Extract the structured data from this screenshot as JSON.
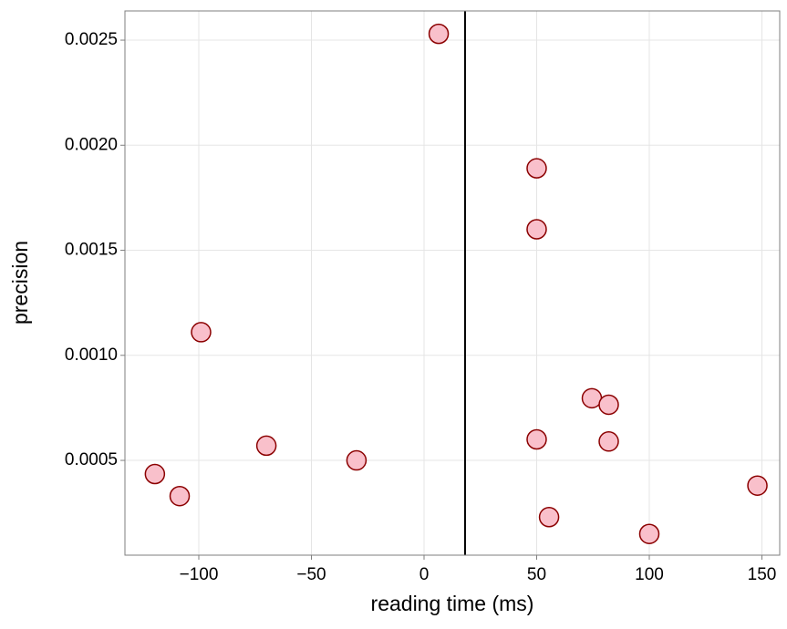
{
  "chart_data": {
    "type": "scatter",
    "x_label": "reading time (ms)",
    "y_label": "precision",
    "x": [
      6.5,
      50,
      50,
      -99,
      74.5,
      82,
      50,
      82,
      -70,
      -30,
      -119.5,
      -108.5,
      148,
      55.5,
      100
    ],
    "values": [
      0.00253,
      0.00189,
      0.0016,
      0.00111,
      0.000796,
      0.000765,
      0.0006,
      0.00059,
      0.00057,
      0.0005,
      0.000435,
      0.00033,
      0.00038,
      0.00023,
      0.00015
    ],
    "color": "#f9c0cb",
    "edge_color": "#8b0000",
    "vline": 18.2,
    "xlim": [
      -132.8,
      157.9
    ],
    "ylim": [
      4.9e-05,
      0.002639
    ],
    "xticks": [
      {
        "value": -100,
        "label": "−100"
      },
      {
        "value": -50,
        "label": "−50"
      },
      0,
      50,
      100,
      150
    ],
    "yticks": [
      0.0005,
      {
        "value": 0.001,
        "label": "0.0010"
      },
      {
        "value": 0.0015,
        "label": "0.0015"
      },
      {
        "value": 0.002,
        "label": "0.0020"
      },
      0.0025
    ],
    "grid": true
  }
}
